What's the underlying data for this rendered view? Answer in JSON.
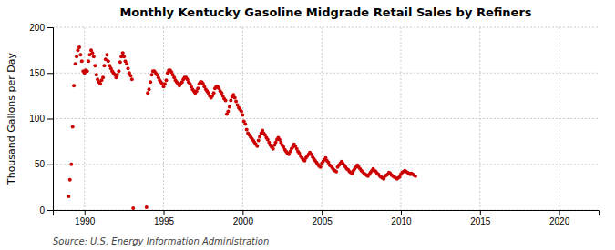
{
  "chart_data": {
    "type": "scatter",
    "title": "Monthly Kentucky Gasoline Midgrade Retail Sales by Refiners",
    "ylabel": "Thousand Gallons per Day",
    "source": "Source: U.S. Energy Information Administration",
    "color": "#CC0000",
    "grid": true,
    "xlim": [
      1988.0,
      2022.5
    ],
    "ylim": [
      0,
      200
    ],
    "xticks": [
      1990,
      1995,
      2000,
      2005,
      2010,
      2015,
      2020
    ],
    "yticks": [
      0,
      50,
      100,
      150,
      200
    ],
    "x": [
      1989.0,
      1989.08,
      1989.17,
      1989.25,
      1989.33,
      1989.42,
      1989.5,
      1989.58,
      1989.67,
      1989.75,
      1989.83,
      1989.92,
      1990.0,
      1990.08,
      1990.17,
      1990.25,
      1990.33,
      1990.42,
      1990.5,
      1990.58,
      1990.67,
      1990.75,
      1990.83,
      1990.92,
      1991.0,
      1991.08,
      1991.17,
      1991.25,
      1991.33,
      1991.42,
      1991.5,
      1991.58,
      1991.67,
      1991.75,
      1991.83,
      1991.92,
      1992.0,
      1992.08,
      1992.17,
      1992.25,
      1992.33,
      1992.42,
      1992.5,
      1992.58,
      1992.67,
      1992.75,
      1992.83,
      1992.92,
      1993.0,
      1993.08,
      1993.92,
      1994.0,
      1994.08,
      1994.17,
      1994.25,
      1994.33,
      1994.42,
      1994.5,
      1994.58,
      1994.67,
      1994.75,
      1994.83,
      1994.92,
      1995.0,
      1995.08,
      1995.17,
      1995.25,
      1995.33,
      1995.42,
      1995.5,
      1995.58,
      1995.67,
      1995.75,
      1995.83,
      1995.92,
      1996.0,
      1996.08,
      1996.17,
      1996.25,
      1996.33,
      1996.42,
      1996.5,
      1996.58,
      1996.67,
      1996.75,
      1996.83,
      1996.92,
      1997.0,
      1997.08,
      1997.17,
      1997.25,
      1997.33,
      1997.42,
      1997.5,
      1997.58,
      1997.67,
      1997.75,
      1997.83,
      1997.92,
      1998.0,
      1998.08,
      1998.17,
      1998.25,
      1998.33,
      1998.42,
      1998.5,
      1998.58,
      1998.67,
      1998.75,
      1998.83,
      1998.92,
      1999.0,
      1999.08,
      1999.17,
      1999.25,
      1999.33,
      1999.42,
      1999.5,
      1999.58,
      1999.67,
      1999.75,
      1999.83,
      1999.92,
      2000.0,
      2000.08,
      2000.17,
      2000.25,
      2000.33,
      2000.42,
      2000.5,
      2000.58,
      2000.67,
      2000.75,
      2000.83,
      2000.92,
      2001.0,
      2001.08,
      2001.17,
      2001.25,
      2001.33,
      2001.42,
      2001.5,
      2001.58,
      2001.67,
      2001.75,
      2001.83,
      2001.92,
      2002.0,
      2002.08,
      2002.17,
      2002.25,
      2002.33,
      2002.42,
      2002.5,
      2002.58,
      2002.67,
      2002.75,
      2002.83,
      2002.92,
      2003.0,
      2003.08,
      2003.17,
      2003.25,
      2003.33,
      2003.42,
      2003.5,
      2003.58,
      2003.67,
      2003.75,
      2003.83,
      2003.92,
      2004.0,
      2004.08,
      2004.17,
      2004.25,
      2004.33,
      2004.42,
      2004.5,
      2004.58,
      2004.67,
      2004.75,
      2004.83,
      2004.92,
      2005.0,
      2005.08,
      2005.17,
      2005.25,
      2005.33,
      2005.42,
      2005.5,
      2005.58,
      2005.67,
      2005.75,
      2005.83,
      2005.92,
      2006.0,
      2006.08,
      2006.17,
      2006.25,
      2006.33,
      2006.42,
      2006.5,
      2006.58,
      2006.67,
      2006.75,
      2006.83,
      2006.92,
      2007.0,
      2007.08,
      2007.17,
      2007.25,
      2007.33,
      2007.42,
      2007.5,
      2007.58,
      2007.67,
      2007.75,
      2007.83,
      2007.92,
      2008.0,
      2008.08,
      2008.17,
      2008.25,
      2008.33,
      2008.42,
      2008.5,
      2008.58,
      2008.67,
      2008.75,
      2008.83,
      2008.92,
      2009.0,
      2009.08,
      2009.17,
      2009.25,
      2009.33,
      2009.42,
      2009.5,
      2009.58,
      2009.67,
      2009.75,
      2009.83,
      2009.92,
      2010.0,
      2010.08,
      2010.17,
      2010.25,
      2010.33,
      2010.42,
      2010.5,
      2010.58,
      2010.67,
      2010.75,
      2010.83,
      2010.92
    ],
    "values": [
      15,
      33,
      50,
      91,
      136,
      160,
      168,
      175,
      178,
      170,
      163,
      152,
      150,
      153,
      152,
      163,
      170,
      175,
      172,
      168,
      158,
      148,
      143,
      140,
      138,
      142,
      145,
      158,
      165,
      170,
      163,
      158,
      155,
      152,
      150,
      148,
      145,
      148,
      152,
      162,
      168,
      172,
      168,
      163,
      160,
      155,
      150,
      147,
      143,
      2,
      3,
      128,
      132,
      140,
      148,
      152,
      152,
      150,
      148,
      145,
      142,
      140,
      138,
      135,
      138,
      142,
      150,
      153,
      153,
      151,
      148,
      145,
      142,
      140,
      138,
      136,
      138,
      140,
      143,
      145,
      145,
      143,
      140,
      138,
      135,
      132,
      130,
      128,
      130,
      133,
      138,
      140,
      140,
      138,
      135,
      132,
      130,
      128,
      125,
      123,
      125,
      128,
      133,
      135,
      135,
      133,
      130,
      128,
      125,
      122,
      120,
      105,
      108,
      113,
      120,
      124,
      126,
      123,
      119,
      115,
      112,
      110,
      108,
      104,
      97,
      94,
      88,
      84,
      82,
      80,
      78,
      76,
      74,
      72,
      70,
      76,
      80,
      84,
      87,
      84,
      82,
      79,
      77,
      74,
      71,
      69,
      67,
      71,
      74,
      77,
      79,
      77,
      74,
      71,
      69,
      66,
      64,
      62,
      61,
      64,
      67,
      69,
      72,
      70,
      67,
      64,
      62,
      59,
      57,
      55,
      54,
      57,
      59,
      61,
      63,
      61,
      58,
      56,
      54,
      52,
      50,
      48,
      47,
      51,
      53,
      55,
      57,
      54,
      52,
      49,
      48,
      46,
      44,
      43,
      42,
      47,
      49,
      51,
      53,
      51,
      49,
      47,
      45,
      44,
      42,
      41,
      40,
      43,
      45,
      47,
      49,
      47,
      45,
      43,
      42,
      40,
      39,
      38,
      37,
      39,
      41,
      43,
      45,
      43,
      42,
      40,
      39,
      37,
      36,
      35,
      34,
      37,
      38,
      39,
      41,
      40,
      38,
      37,
      36,
      35,
      34,
      35,
      36,
      39,
      41,
      42,
      43,
      42,
      41,
      40,
      39,
      40,
      39,
      38,
      37
    ]
  }
}
